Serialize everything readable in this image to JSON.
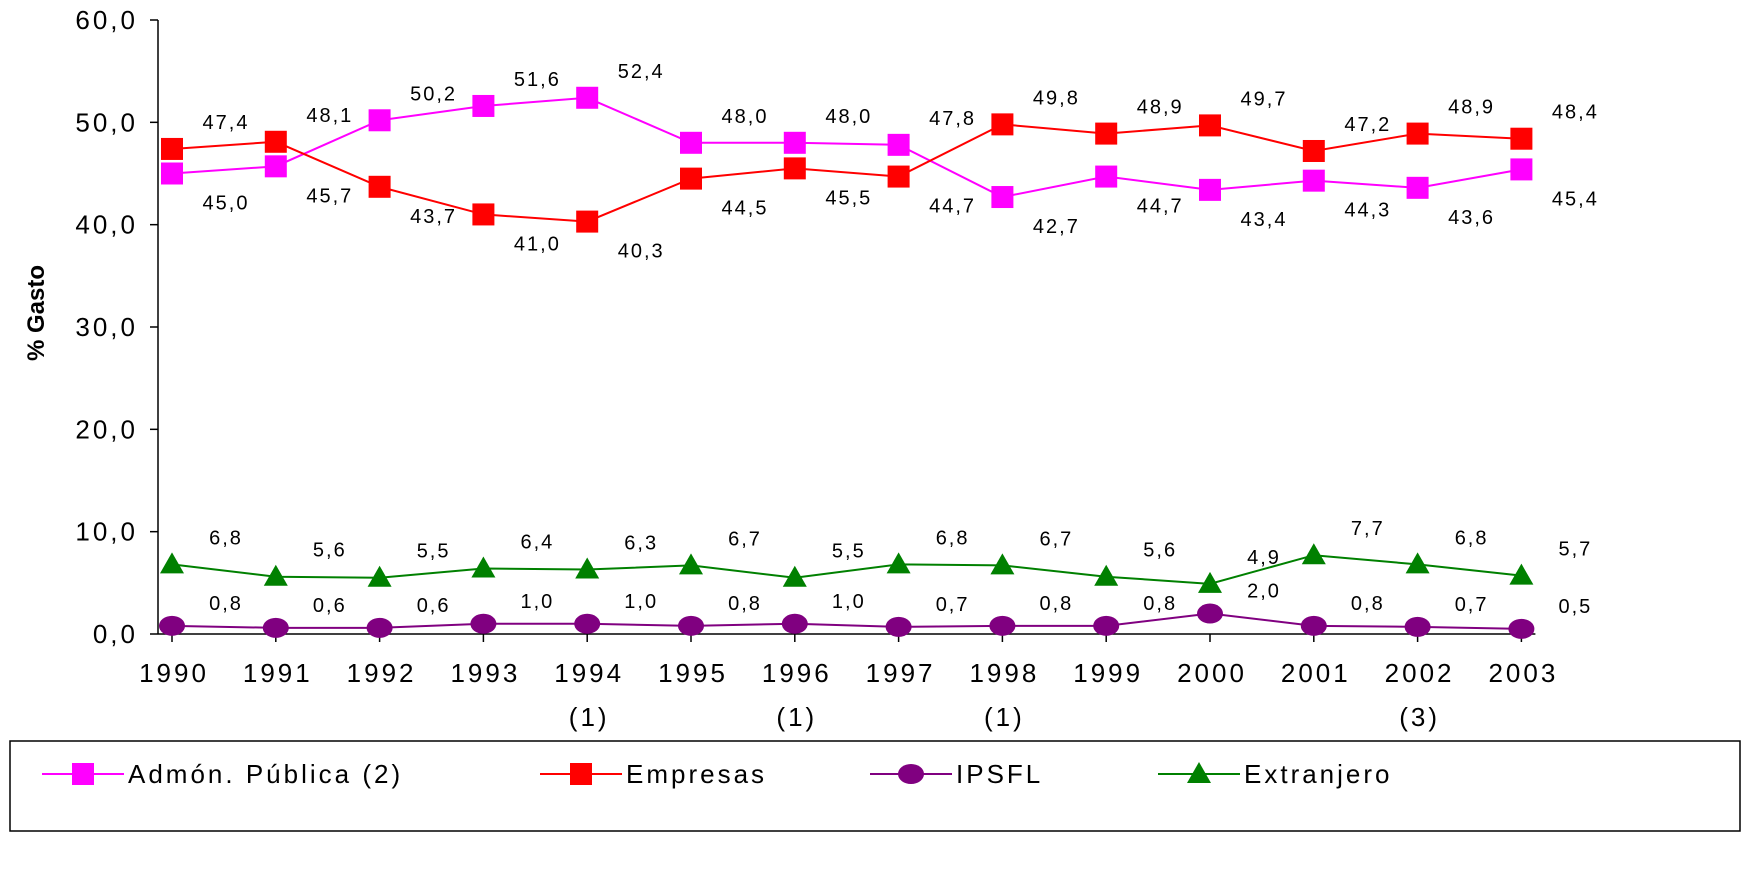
{
  "chart_data": {
    "type": "line",
    "ylabel": "% Gasto",
    "xlabel": "",
    "ylim": [
      0,
      60
    ],
    "yticks": [
      "0,0",
      "10,0",
      "20,0",
      "30,0",
      "40,0",
      "50,0",
      "60,0"
    ],
    "categories": [
      "1990",
      "1991",
      "1992",
      "1993",
      "1994",
      "1995",
      "1996",
      "1997",
      "1998",
      "1999",
      "2000",
      "2001",
      "2002",
      "2003"
    ],
    "category_notes": [
      "",
      "",
      "",
      "",
      "(1)",
      "",
      "(1)",
      "",
      "(1)",
      "",
      "",
      "",
      "(3)",
      ""
    ],
    "legend_position": "bottom",
    "grid": false,
    "series": [
      {
        "name": "Admón. Pública (2)",
        "color": "#ff00ff",
        "marker": "square",
        "values": [
          45.0,
          45.7,
          50.2,
          51.6,
          52.4,
          48.0,
          48.0,
          47.8,
          42.7,
          44.7,
          43.4,
          44.3,
          43.6,
          45.4
        ],
        "labels": [
          "45,0",
          "45,7",
          "50,2",
          "51,6",
          "52,4",
          "48,0",
          "48,0",
          "47,8",
          "42,7",
          "44,7",
          "43,4",
          "44,3",
          "43,6",
          "45,4"
        ]
      },
      {
        "name": "Empresas",
        "color": "#ff0000",
        "marker": "square",
        "values": [
          47.4,
          48.1,
          43.7,
          41.0,
          40.3,
          44.5,
          45.5,
          44.7,
          49.8,
          48.9,
          49.7,
          47.2,
          48.9,
          48.4
        ],
        "labels": [
          "47,4",
          "48,1",
          "43,7",
          "41,0",
          "40,3",
          "44,5",
          "45,5",
          "44,7",
          "49,8",
          "48,9",
          "49,7",
          "47,2",
          "48,9",
          "48,4"
        ]
      },
      {
        "name": "IPSFL",
        "color": "#800080",
        "marker": "circle",
        "values": [
          0.8,
          0.6,
          0.6,
          1.0,
          1.0,
          0.8,
          1.0,
          0.7,
          0.8,
          0.8,
          2.0,
          0.8,
          0.7,
          0.5
        ],
        "labels": [
          "0,8",
          "0,6",
          "0,6",
          "1,0",
          "1,0",
          "0,8",
          "1,0",
          "0,7",
          "0,8",
          "0,8",
          "2,0",
          "0,8",
          "0,7",
          "0,5"
        ]
      },
      {
        "name": "Extranjero",
        "color": "#008000",
        "marker": "triangle",
        "values": [
          6.8,
          5.6,
          5.5,
          6.4,
          6.3,
          6.7,
          5.5,
          6.8,
          6.7,
          5.6,
          4.9,
          7.7,
          6.8,
          5.7
        ],
        "labels": [
          "6,8",
          "5,6",
          "5,5",
          "6,4",
          "6,3",
          "6,7",
          "5,5",
          "6,8",
          "6,7",
          "5,6",
          "4,9",
          "7,7",
          "6,8",
          "5,7"
        ]
      }
    ]
  }
}
